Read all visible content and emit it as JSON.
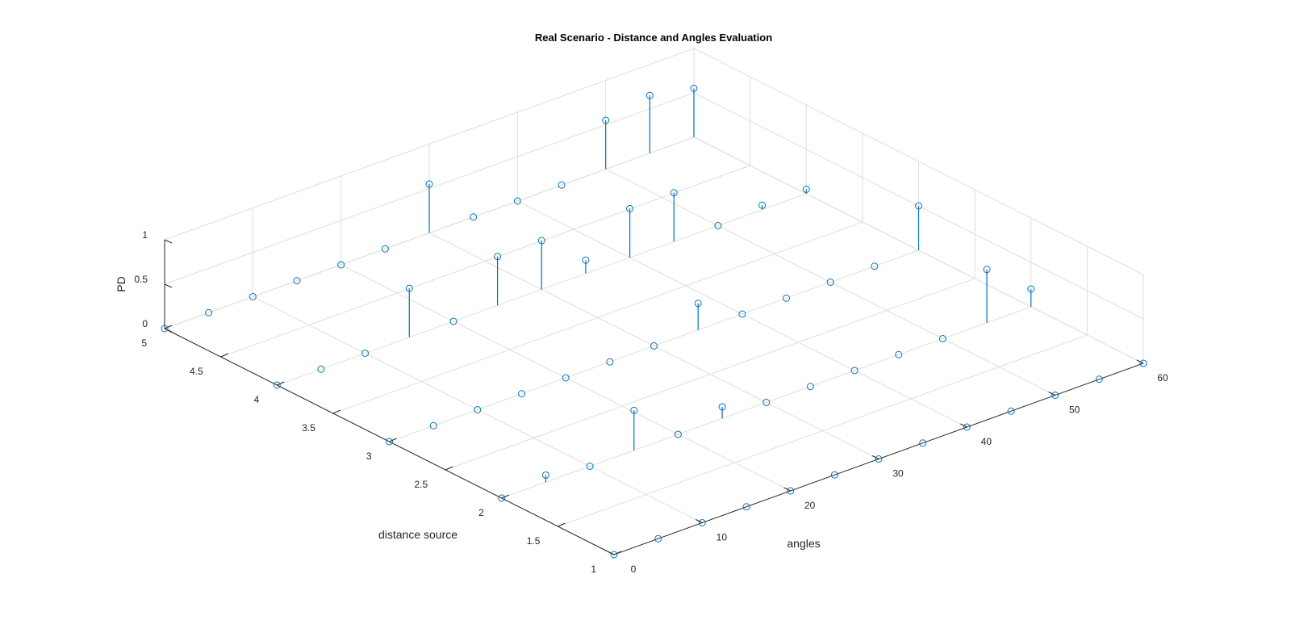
{
  "chart_data": {
    "type": "stem3",
    "title": "Real Scenario - Distance and Angles Evaluation",
    "xlabel": "angles",
    "ylabel": "distance source",
    "zlabel": "PD",
    "xlim": [
      0,
      60
    ],
    "ylim": [
      1,
      5
    ],
    "zlim": [
      0,
      1
    ],
    "xticks": [
      "0",
      "10",
      "20",
      "30",
      "40",
      "50",
      "60"
    ],
    "yticks": [
      "1",
      "1.5",
      "2",
      "2.5",
      "3",
      "3.5",
      "4",
      "4.5",
      "5"
    ],
    "zticks": [
      "0",
      "0.5",
      "1"
    ],
    "grid": true,
    "series_color": "#0072bd",
    "series": [
      {
        "points": [
          {
            "x": 0,
            "y": 1,
            "z": 0
          },
          {
            "x": 5,
            "y": 1,
            "z": 0
          },
          {
            "x": 10,
            "y": 1,
            "z": 0
          },
          {
            "x": 15,
            "y": 1,
            "z": 0
          },
          {
            "x": 20,
            "y": 1,
            "z": 0
          },
          {
            "x": 25,
            "y": 1,
            "z": 0
          },
          {
            "x": 30,
            "y": 1,
            "z": 0
          },
          {
            "x": 35,
            "y": 1,
            "z": 0
          },
          {
            "x": 40,
            "y": 1,
            "z": 0
          },
          {
            "x": 45,
            "y": 1,
            "z": 0
          },
          {
            "x": 50,
            "y": 1,
            "z": 0
          },
          {
            "x": 55,
            "y": 1,
            "z": 0
          },
          {
            "x": 60,
            "y": 1,
            "z": 0
          },
          {
            "x": 0,
            "y": 2,
            "z": 0
          },
          {
            "x": 5,
            "y": 2,
            "z": 0.08
          },
          {
            "x": 10,
            "y": 2,
            "z": 0
          },
          {
            "x": 15,
            "y": 2,
            "z": 0.45
          },
          {
            "x": 20,
            "y": 2,
            "z": 0
          },
          {
            "x": 25,
            "y": 2,
            "z": 0.13
          },
          {
            "x": 30,
            "y": 2,
            "z": 0
          },
          {
            "x": 35,
            "y": 2,
            "z": 0
          },
          {
            "x": 40,
            "y": 2,
            "z": 0
          },
          {
            "x": 45,
            "y": 2,
            "z": 0
          },
          {
            "x": 50,
            "y": 2,
            "z": 0
          },
          {
            "x": 55,
            "y": 2,
            "z": 0.6
          },
          {
            "x": 60,
            "y": 2,
            "z": 0.2
          },
          {
            "x": 0,
            "y": 3,
            "z": 0
          },
          {
            "x": 5,
            "y": 3,
            "z": 0
          },
          {
            "x": 10,
            "y": 3,
            "z": 0
          },
          {
            "x": 15,
            "y": 3,
            "z": 0
          },
          {
            "x": 20,
            "y": 3,
            "z": 0
          },
          {
            "x": 25,
            "y": 3,
            "z": 0
          },
          {
            "x": 30,
            "y": 3,
            "z": 0
          },
          {
            "x": 35,
            "y": 3,
            "z": 0.3
          },
          {
            "x": 40,
            "y": 3,
            "z": 0
          },
          {
            "x": 45,
            "y": 3,
            "z": 0
          },
          {
            "x": 50,
            "y": 3,
            "z": 0
          },
          {
            "x": 55,
            "y": 3,
            "z": 0
          },
          {
            "x": 60,
            "y": 3,
            "z": 0.5
          },
          {
            "x": 0,
            "y": 4,
            "z": 0
          },
          {
            "x": 5,
            "y": 4,
            "z": 0
          },
          {
            "x": 10,
            "y": 4,
            "z": 0
          },
          {
            "x": 15,
            "y": 4,
            "z": 0.55
          },
          {
            "x": 20,
            "y": 4,
            "z": 0
          },
          {
            "x": 25,
            "y": 4,
            "z": 0.55
          },
          {
            "x": 30,
            "y": 4,
            "z": 0.55
          },
          {
            "x": 35,
            "y": 4,
            "z": 0.15
          },
          {
            "x": 40,
            "y": 4,
            "z": 0.55
          },
          {
            "x": 45,
            "y": 4,
            "z": 0.55
          },
          {
            "x": 50,
            "y": 4,
            "z": 0
          },
          {
            "x": 55,
            "y": 4,
            "z": 0.05
          },
          {
            "x": 60,
            "y": 4,
            "z": 0.05
          },
          {
            "x": 0,
            "y": 5,
            "z": 0
          },
          {
            "x": 5,
            "y": 5,
            "z": 0
          },
          {
            "x": 10,
            "y": 5,
            "z": 0
          },
          {
            "x": 15,
            "y": 5,
            "z": 0
          },
          {
            "x": 20,
            "y": 5,
            "z": 0
          },
          {
            "x": 25,
            "y": 5,
            "z": 0
          },
          {
            "x": 30,
            "y": 5,
            "z": 0.55
          },
          {
            "x": 35,
            "y": 5,
            "z": 0
          },
          {
            "x": 40,
            "y": 5,
            "z": 0
          },
          {
            "x": 45,
            "y": 5,
            "z": 0
          },
          {
            "x": 50,
            "y": 5,
            "z": 0.55
          },
          {
            "x": 55,
            "y": 5,
            "z": 0.65
          },
          {
            "x": 60,
            "y": 5,
            "z": 0.55
          }
        ]
      }
    ]
  }
}
